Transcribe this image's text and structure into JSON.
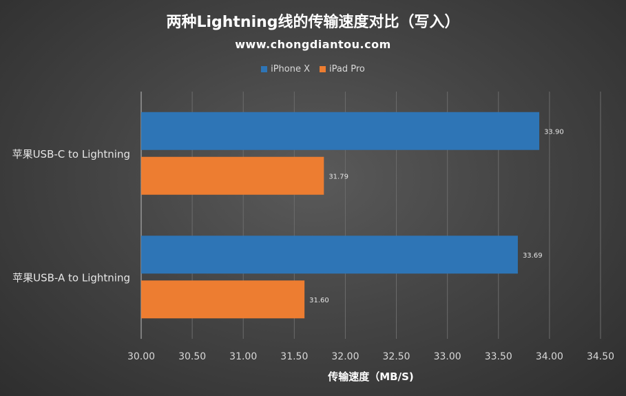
{
  "title": "两种Lightning线的传输速度对比（写入）",
  "subtitle": "www.chongdiantou.com",
  "legend": [
    {
      "name": "iPhone X",
      "color": "#2e75b6"
    },
    {
      "name": "iPad Pro",
      "color": "#ed7d31"
    }
  ],
  "chart_data": {
    "type": "bar",
    "orientation": "horizontal",
    "title": "两种Lightning线的传输速度对比（写入）",
    "subtitle": "www.chongdiantou.com",
    "xlabel": "传输速度（MB/S)",
    "ylabel": "",
    "categories": [
      "苹果USB-C to Lightning",
      "苹果USB-A to Lightning"
    ],
    "series": [
      {
        "name": "iPhone X",
        "color": "#2e75b6",
        "values": [
          33.9,
          33.69
        ],
        "labels": [
          "33.90",
          "33.69"
        ]
      },
      {
        "name": "iPad Pro",
        "color": "#ed7d31",
        "values": [
          31.79,
          31.6
        ],
        "labels": [
          "31.79",
          "31.60"
        ]
      }
    ],
    "xlim": [
      30.0,
      34.5
    ],
    "xticks": [
      "30.00",
      "30.50",
      "31.00",
      "31.50",
      "32.00",
      "32.50",
      "33.00",
      "33.50",
      "34.00",
      "34.50"
    ],
    "grid": true,
    "legend_position": "top"
  }
}
